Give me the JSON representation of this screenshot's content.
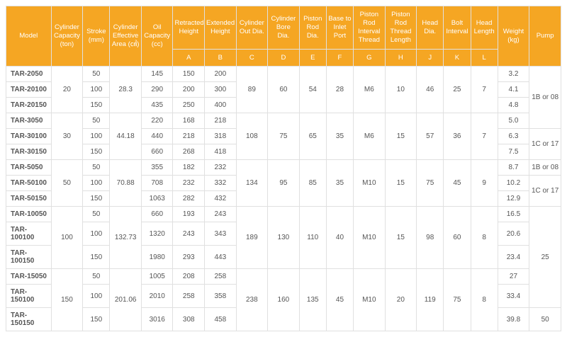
{
  "colors": {
    "header_bg": "#f5a623",
    "header_fg": "#ffffff",
    "border": "#e0e0e0",
    "text": "#555555",
    "bg": "#ffffff"
  },
  "font": {
    "family": "Arial, sans-serif",
    "header_pt": 9.5,
    "cell_pt": 10
  },
  "headers": {
    "model": "Model",
    "cap": "Cylinder Capacity (ton)",
    "stroke": "Stroke (mm)",
    "area": "Cylinder Effective Area (㎠)",
    "oil": "Oil Capacity (cc)",
    "retracted": "Retracted Height",
    "extended": "Extended Height",
    "outdia": "Cylinder Out Dia.",
    "boredia": "Cylinder Bore Dia.",
    "roddia": "Piston Rod Dia.",
    "inlet": "Base to Inlet Port",
    "thread": "Piston Rod Interval Thread",
    "thlen": "Piston Rod Thread Length",
    "headdia": "Head Dia.",
    "boltint": "Bolt Interval",
    "headlen": "Head Length",
    "weight": "Weight (kg)",
    "pump": "Pump",
    "A": "A",
    "B": "B",
    "C": "C",
    "D": "D",
    "E": "E",
    "F": "F",
    "G": "G",
    "H": "H",
    "J": "J",
    "K": "K",
    "L": "L"
  },
  "groups": [
    {
      "cap": "20",
      "area": "28.3",
      "C": "89",
      "D": "60",
      "E": "54",
      "F": "28",
      "G": "M6",
      "H": "10",
      "J": "46",
      "K": "25",
      "L": "7",
      "rows": [
        {
          "model": "TAR-2050",
          "stroke": "50",
          "oil": "145",
          "A": "150",
          "B": "200",
          "weight": "3.2"
        },
        {
          "model": "TAR-20100",
          "stroke": "100",
          "oil": "290",
          "A": "200",
          "B": "300",
          "weight": "4.1"
        },
        {
          "model": "TAR-20150",
          "stroke": "150",
          "oil": "435",
          "A": "250",
          "B": "400",
          "weight": "4.8"
        }
      ]
    },
    {
      "cap": "30",
      "area": "44.18",
      "C": "108",
      "D": "75",
      "E": "65",
      "F": "35",
      "G": "M6",
      "H": "15",
      "J": "57",
      "K": "36",
      "L": "7",
      "rows": [
        {
          "model": "TAR-3050",
          "stroke": "50",
          "oil": "220",
          "A": "168",
          "B": "218",
          "weight": "5.0"
        },
        {
          "model": "TAR-30100",
          "stroke": "100",
          "oil": "440",
          "A": "218",
          "B": "318",
          "weight": "6.3"
        },
        {
          "model": "TAR-30150",
          "stroke": "150",
          "oil": "660",
          "A": "268",
          "B": "418",
          "weight": "7.5"
        }
      ]
    },
    {
      "cap": "50",
      "area": "70.88",
      "C": "134",
      "D": "95",
      "E": "85",
      "F": "35",
      "G": "M10",
      "H": "15",
      "J": "75",
      "K": "45",
      "L": "9",
      "rows": [
        {
          "model": "TAR-5050",
          "stroke": "50",
          "oil": "355",
          "A": "182",
          "B": "232",
          "weight": "8.7"
        },
        {
          "model": "TAR-50100",
          "stroke": "100",
          "oil": "708",
          "A": "232",
          "B": "332",
          "weight": "10.2"
        },
        {
          "model": "TAR-50150",
          "stroke": "150",
          "oil": "1063",
          "A": "282",
          "B": "432",
          "weight": "12.9"
        }
      ]
    },
    {
      "cap": "100",
      "area": "132.73",
      "C": "189",
      "D": "130",
      "E": "110",
      "F": "40",
      "G": "M10",
      "H": "15",
      "J": "98",
      "K": "60",
      "L": "8",
      "rows": [
        {
          "model": "TAR-10050",
          "stroke": "50",
          "oil": "660",
          "A": "193",
          "B": "243",
          "weight": "16.5"
        },
        {
          "model": "TAR-100100",
          "stroke": "100",
          "oil": "1320",
          "A": "243",
          "B": "343",
          "weight": "20.6"
        },
        {
          "model": "TAR-100150",
          "stroke": "150",
          "oil": "1980",
          "A": "293",
          "B": "443",
          "weight": "23.4"
        }
      ]
    },
    {
      "cap": "150",
      "area": "201.06",
      "C": "238",
      "D": "160",
      "E": "135",
      "F": "45",
      "G": "M10",
      "H": "20",
      "J": "119",
      "K": "75",
      "L": "8",
      "rows": [
        {
          "model": "TAR-15050",
          "stroke": "50",
          "oil": "1005",
          "A": "208",
          "B": "258",
          "weight": "27"
        },
        {
          "model": "TAR-150100",
          "stroke": "100",
          "oil": "2010",
          "A": "258",
          "B": "358",
          "weight": "33.4"
        },
        {
          "model": "TAR-150150",
          "stroke": "150",
          "oil": "3016",
          "A": "308",
          "B": "458",
          "weight": "39.8"
        }
      ]
    }
  ],
  "pumps": [
    {
      "span": 4,
      "label": "1B or 08"
    },
    {
      "span": 2,
      "label": "1C or 17"
    },
    {
      "span": 1,
      "label": "1B or 08"
    },
    {
      "span": 2,
      "label": "1C or 17"
    },
    {
      "span": 5,
      "label": "25"
    },
    {
      "span": 1,
      "label": "50"
    }
  ]
}
